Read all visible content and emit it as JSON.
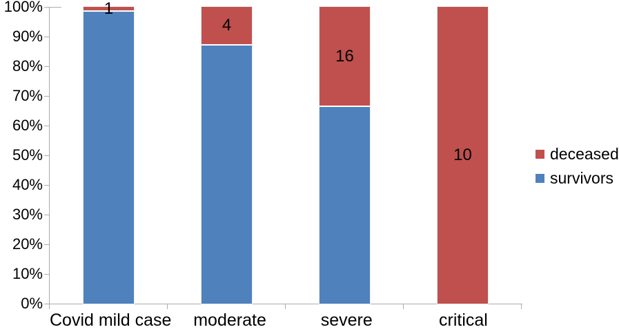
{
  "chart_data": {
    "type": "bar",
    "subtype": "100-percent-stacked-column",
    "title": "",
    "background_color": "#FFFFFF",
    "axis_color": "#ABABAB",
    "label_color": "#000000",
    "separator_color": "#FFFFFF",
    "grid": false,
    "categories": [
      "Covid mild case",
      "moderate",
      "severe",
      "critical"
    ],
    "series": [
      {
        "name": "deceased",
        "color": "#C0504D",
        "counts": [
          1,
          4,
          16,
          10
        ],
        "pct": [
          1.2,
          12.5,
          33.3,
          100
        ]
      },
      {
        "name": "survivors",
        "color": "#4F81BD",
        "pct": [
          98.8,
          87.5,
          66.7,
          0
        ]
      }
    ],
    "data_labels": {
      "series": "deceased",
      "values": [
        "1",
        "4",
        "16",
        "10"
      ]
    },
    "y_axis": {
      "range": [
        0,
        100
      ],
      "ticks": [
        {
          "label": "0%",
          "value": 0
        },
        {
          "label": "10%",
          "value": 10
        },
        {
          "label": "20%",
          "value": 20
        },
        {
          "label": "30%",
          "value": 30
        },
        {
          "label": "40%",
          "value": 40
        },
        {
          "label": "50%",
          "value": 50
        },
        {
          "label": "60%",
          "value": 60
        },
        {
          "label": "70%",
          "value": 70
        },
        {
          "label": "80%",
          "value": 80
        },
        {
          "label": "90%",
          "value": 90
        },
        {
          "label": "100%",
          "value": 100
        }
      ]
    },
    "legend": {
      "position": "right",
      "entries": [
        {
          "label": "deceased",
          "color": "#C0504D"
        },
        {
          "label": "survivors",
          "color": "#4F81BD"
        }
      ]
    }
  }
}
